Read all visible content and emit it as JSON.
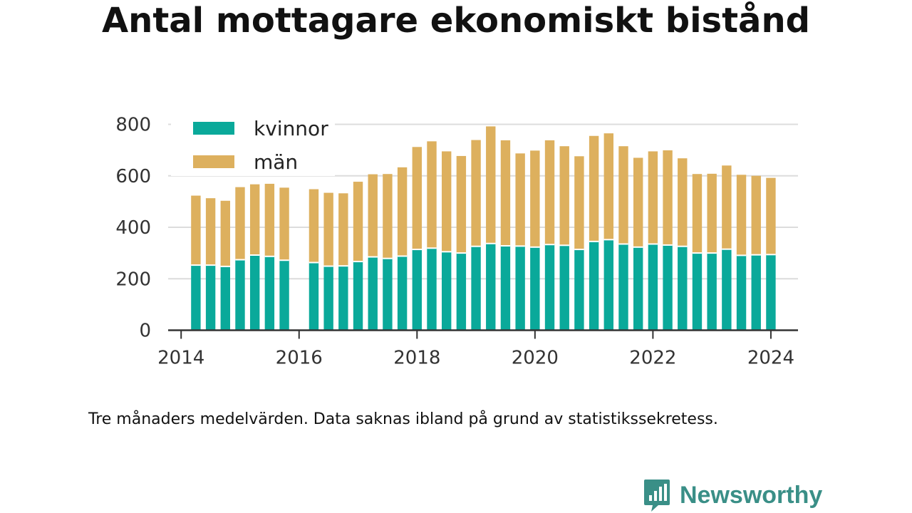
{
  "title": "Antal mottagare ekonomiskt bistånd",
  "footnote": "Tre månaders medelvärden. Data saknas ibland på grund av statistikssekretess.",
  "brand": {
    "name": "Newsworthy",
    "color": "#3a8f87"
  },
  "chart_data": {
    "type": "bar",
    "stacked": true,
    "title": "Antal mottagare ekonomiskt bistånd",
    "xlabel": "",
    "ylabel": "",
    "ylim": [
      0,
      800
    ],
    "yticks": [
      0,
      200,
      400,
      600,
      800
    ],
    "xticks": [
      2014,
      2016,
      2018,
      2020,
      2022,
      2024
    ],
    "grid": true,
    "legend_position": "top-left",
    "x": [
      2014.25,
      2014.5,
      2014.75,
      2015.0,
      2015.25,
      2015.5,
      2015.75,
      2016.25,
      2016.5,
      2016.75,
      2017.0,
      2017.25,
      2017.5,
      2017.75,
      2018.0,
      2018.25,
      2018.5,
      2018.75,
      2019.0,
      2019.25,
      2019.5,
      2019.75,
      2020.0,
      2020.25,
      2020.5,
      2020.75,
      2021.0,
      2021.25,
      2021.5,
      2021.75,
      2022.0,
      2022.25,
      2022.5,
      2022.75,
      2023.0,
      2023.25,
      2023.5,
      2023.75,
      2024.0
    ],
    "series": [
      {
        "name": "kvinnor",
        "color": "#0aa99a",
        "values": [
          253,
          253,
          248,
          274,
          292,
          287,
          272,
          263,
          249,
          250,
          267,
          285,
          279,
          288,
          314,
          319,
          305,
          300,
          326,
          337,
          328,
          327,
          323,
          333,
          330,
          314,
          345,
          352,
          335,
          323,
          335,
          331,
          326,
          300,
          300,
          315,
          291,
          293,
          294
        ]
      },
      {
        "name": "män",
        "color": "#ddb05e",
        "values": [
          270,
          260,
          255,
          282,
          275,
          282,
          282,
          285,
          285,
          282,
          310,
          321,
          328,
          345,
          398,
          415,
          390,
          377,
          413,
          455,
          410,
          360,
          375,
          405,
          385,
          362,
          410,
          413,
          380,
          347,
          360,
          368,
          342,
          307,
          308,
          325,
          313,
          307,
          298
        ]
      }
    ]
  }
}
